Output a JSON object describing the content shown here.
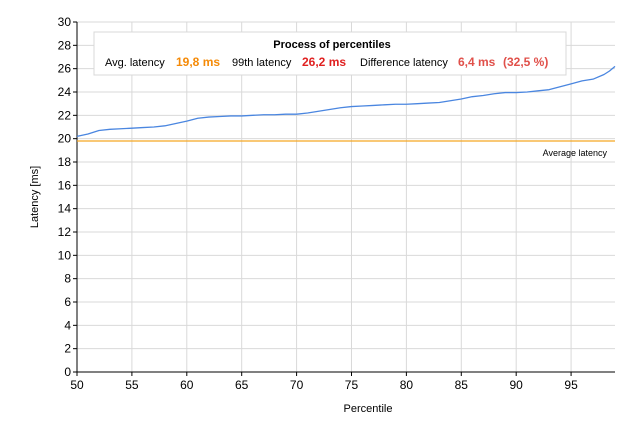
{
  "chart_data": {
    "type": "line",
    "title": "",
    "xlabel": "Percentile",
    "ylabel": "Latency [ms]",
    "xlim": [
      50,
      99
    ],
    "ylim": [
      0,
      30
    ],
    "x_ticks": [
      50,
      55,
      60,
      65,
      70,
      75,
      80,
      85,
      90,
      95
    ],
    "y_ticks": [
      0,
      2,
      4,
      6,
      8,
      10,
      12,
      14,
      16,
      18,
      20,
      22,
      24,
      26,
      28,
      30
    ],
    "grid": true,
    "series": [
      {
        "name": "",
        "color": "#4a86e0",
        "points": [
          [
            50,
            20.2
          ],
          [
            51,
            20.4
          ],
          [
            52,
            20.7
          ],
          [
            53,
            20.8
          ],
          [
            54,
            20.85
          ],
          [
            55,
            20.9
          ],
          [
            56,
            20.95
          ],
          [
            57,
            21.0
          ],
          [
            58,
            21.1
          ],
          [
            59,
            21.3
          ],
          [
            60,
            21.5
          ],
          [
            61,
            21.75
          ],
          [
            62,
            21.85
          ],
          [
            63,
            21.9
          ],
          [
            64,
            21.95
          ],
          [
            65,
            21.95
          ],
          [
            66,
            22.0
          ],
          [
            67,
            22.05
          ],
          [
            68,
            22.05
          ],
          [
            69,
            22.1
          ],
          [
            70,
            22.1
          ],
          [
            71,
            22.2
          ],
          [
            72,
            22.35
          ],
          [
            73,
            22.5
          ],
          [
            74,
            22.65
          ],
          [
            75,
            22.75
          ],
          [
            76,
            22.8
          ],
          [
            77,
            22.85
          ],
          [
            78,
            22.9
          ],
          [
            79,
            22.95
          ],
          [
            80,
            22.95
          ],
          [
            81,
            23.0
          ],
          [
            82,
            23.05
          ],
          [
            83,
            23.1
          ],
          [
            84,
            23.25
          ],
          [
            85,
            23.4
          ],
          [
            86,
            23.6
          ],
          [
            87,
            23.7
          ],
          [
            88,
            23.85
          ],
          [
            89,
            23.95
          ],
          [
            90,
            23.95
          ],
          [
            91,
            24.0
          ],
          [
            92,
            24.1
          ],
          [
            93,
            24.2
          ],
          [
            94,
            24.45
          ],
          [
            95,
            24.7
          ],
          [
            96,
            24.95
          ],
          [
            97,
            25.1
          ],
          [
            98,
            25.5
          ],
          [
            98.5,
            25.8
          ],
          [
            99,
            26.2
          ]
        ]
      }
    ],
    "reference_lines": [
      {
        "label": "Average latency",
        "value": 19.8,
        "color": "#f5a623"
      }
    ],
    "legend": {
      "title": "Process of percentiles",
      "placement": "top-center",
      "items": [
        {
          "label": "Avg. latency",
          "value": "19,8 ms",
          "color": "#f58a07"
        },
        {
          "label": "99th latency",
          "value": "26,2 ms",
          "color": "#e02020"
        },
        {
          "label": "Difference latency",
          "value": "6,4 ms",
          "extra": "(32,5 %)",
          "color": "#e0504a"
        }
      ]
    }
  }
}
